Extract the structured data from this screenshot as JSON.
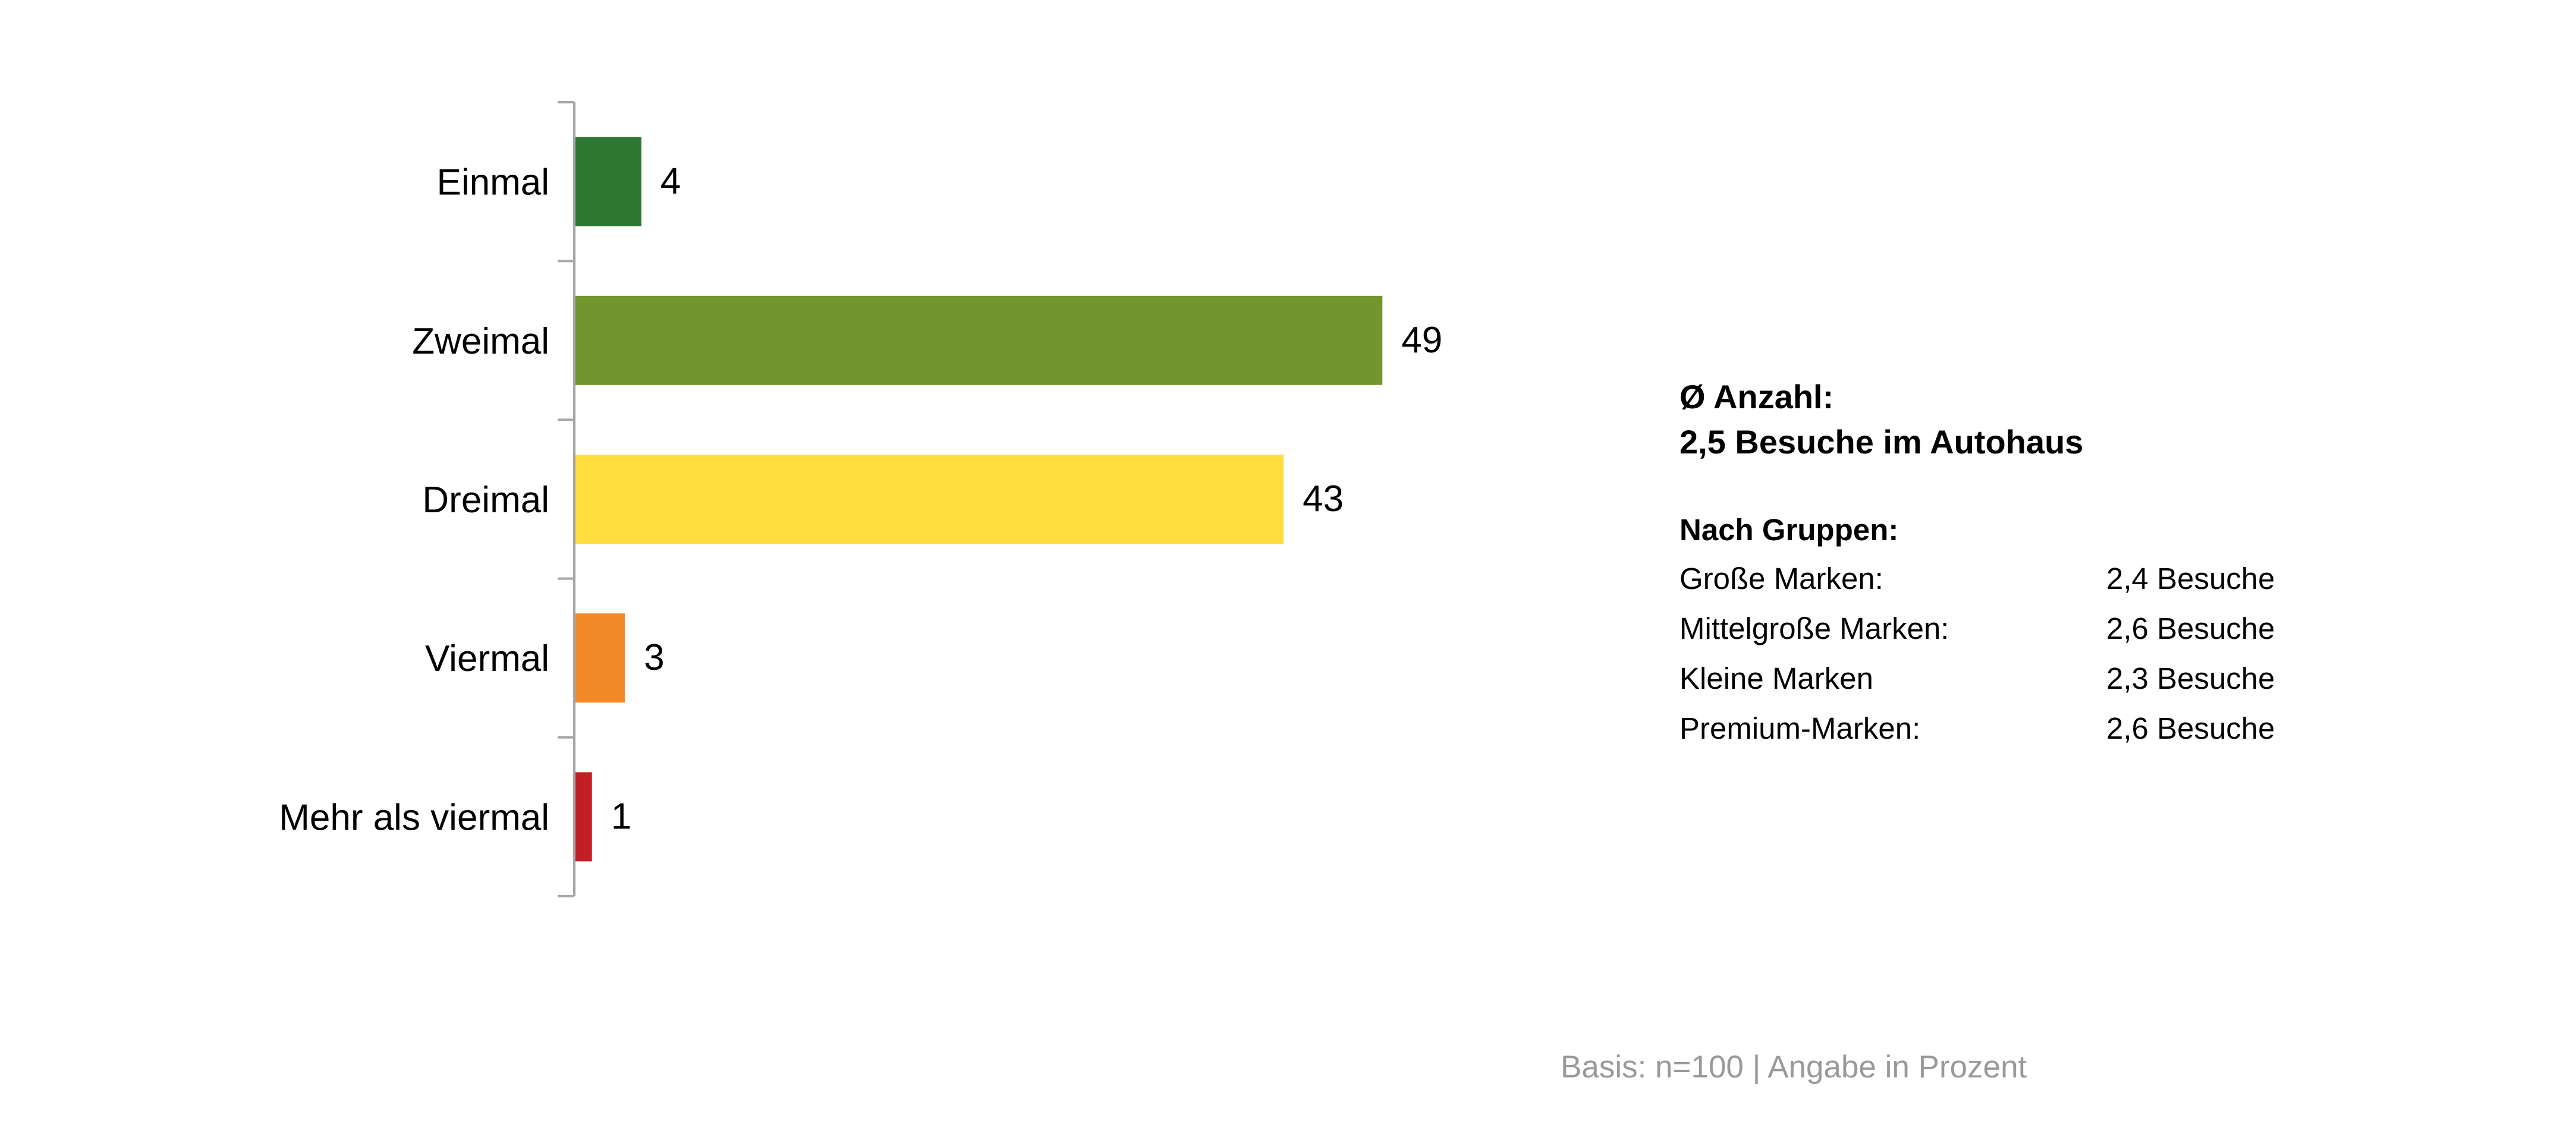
{
  "chart_data": {
    "type": "bar",
    "orientation": "horizontal",
    "categories": [
      "Einmal",
      "Zweimal",
      "Dreimal",
      "Viermal",
      "Mehr als viermal"
    ],
    "values": [
      4,
      49,
      43,
      3,
      1
    ],
    "colors": [
      "#2e7732",
      "#74942d",
      "#ffde40",
      "#f28a27",
      "#c11f24"
    ],
    "xlim": [
      0,
      100
    ],
    "grid": false,
    "legend": "none",
    "value_labels": [
      "4",
      "49",
      "43",
      "3",
      "1"
    ]
  },
  "info": {
    "headline_1": "Ø Anzahl:",
    "headline_2": "2,5 Besuche im Autohaus",
    "groups_title": "Nach Gruppen:",
    "groups": [
      {
        "name": "Große Marken:",
        "value": "2,4 Besuche"
      },
      {
        "name": "Mittelgroße Marken:",
        "value": "2,6 Besuche"
      },
      {
        "name": "Kleine Marken",
        "value": "2,3 Besuche"
      },
      {
        "name": "Premium-Marken:",
        "value": "2,6 Besuche"
      }
    ]
  },
  "footnote": "Basis: n=100 | Angabe in Prozent"
}
